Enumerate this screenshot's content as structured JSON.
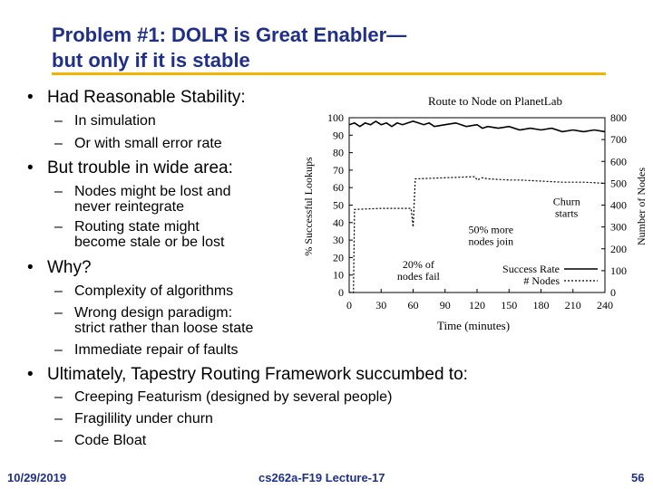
{
  "slide": {
    "title_line1": "Problem #1: DOLR is Great Enabler—",
    "title_line2": "but only if it is stable",
    "accent_color": "#f2b400",
    "title_color": "#1f2f8a"
  },
  "bullets": [
    {
      "text": "Had Reasonable Stability:",
      "subs": [
        [
          "In simulation"
        ],
        [
          "Or with small error rate"
        ]
      ]
    },
    {
      "text": "But trouble in wide area:",
      "subs": [
        [
          "Nodes might be lost and",
          "never reintegrate"
        ],
        [
          "Routing state might",
          "become stale or be lost"
        ]
      ]
    },
    {
      "text": "Why?",
      "subs": [
        [
          "Complexity of algorithms"
        ],
        [
          "Wrong design paradigm:",
          "strict rather than loose state"
        ],
        [
          "Immediate repair of faults"
        ]
      ]
    },
    {
      "text": "Ultimately, Tapestry Routing Framework succumbed to:",
      "subs": [
        [
          "Creeping Featurism (designed by several people)"
        ],
        [
          "Fragilility under churn"
        ],
        [
          "Code Bloat"
        ]
      ]
    }
  ],
  "chart_data": {
    "type": "line",
    "title": "Route to Node on PlanetLab",
    "xlabel": "Time (minutes)",
    "ylabel_left": "% Successful Lookups",
    "ylabel_right": "Number of Nodes",
    "xlim": [
      0,
      240
    ],
    "ylim_left": [
      0,
      100
    ],
    "ylim_right": [
      0,
      800
    ],
    "x_ticks": [
      "0",
      "30",
      "60",
      "90",
      "120",
      "150",
      "180",
      "210",
      "240"
    ],
    "y_ticks_left": [
      "0",
      "10",
      "20",
      "30",
      "40",
      "50",
      "60",
      "70",
      "80",
      "90",
      "100"
    ],
    "y_ticks_right": [
      "0",
      "100",
      "200",
      "300",
      "400",
      "500",
      "600",
      "700",
      "800"
    ],
    "series": [
      {
        "name": "Success Rate",
        "axis": "left",
        "x": [
          0,
          5,
          10,
          15,
          20,
          25,
          30,
          35,
          40,
          45,
          50,
          55,
          60,
          65,
          70,
          75,
          80,
          90,
          100,
          110,
          120,
          125,
          130,
          140,
          150,
          160,
          170,
          180,
          190,
          200,
          210,
          220,
          230,
          240
        ],
        "y": [
          96,
          97,
          95,
          97,
          96,
          98,
          96,
          97,
          95,
          97,
          96,
          97,
          98,
          97,
          96,
          97,
          95,
          96,
          97,
          95,
          96,
          94,
          95,
          94,
          95,
          93,
          94,
          93,
          94,
          92,
          93,
          92,
          93,
          92
        ]
      },
      {
        "name": "# Nodes",
        "axis": "right",
        "x": [
          0,
          4,
          5,
          30,
          58,
          60,
          62,
          118,
          120,
          125,
          130,
          150,
          160,
          180,
          200,
          220,
          240
        ],
        "y": [
          0,
          0,
          380,
          385,
          385,
          300,
          520,
          530,
          515,
          525,
          520,
          515,
          515,
          510,
          505,
          505,
          500
        ]
      }
    ],
    "legend": [
      "Success Rate",
      "# Nodes"
    ],
    "legend_position": "bottom-right",
    "annotations": [
      {
        "text_lines": [
          "20% of",
          "nodes fail"
        ],
        "x": 65,
        "y": 14
      },
      {
        "text_lines": [
          "50% more",
          "nodes join"
        ],
        "x": 133,
        "y": 34
      },
      {
        "text_lines": [
          "Churn",
          "starts"
        ],
        "x": 204,
        "y": 50
      }
    ]
  },
  "footer": {
    "date": "10/29/2019",
    "course": "cs262a-F19 Lecture-17",
    "page": "56"
  }
}
